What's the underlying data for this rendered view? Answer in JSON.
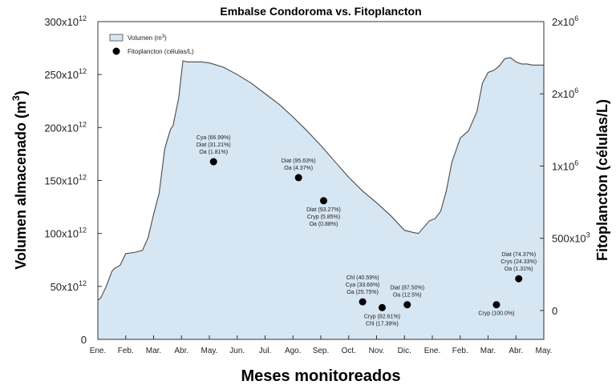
{
  "chart_data": {
    "type": "area",
    "title": "Embalse Condoroma vs. Fitoplancton",
    "xlabel": "Meses monitoreados",
    "ylabel_left": "Volumen almacenado (m",
    "ylabel_left_sup": "3",
    "ylabel_left_end": ")",
    "ylabel_right": "Fitoplancton (células/L)",
    "x_months": [
      "Ene.",
      "Feb.",
      "Mar.",
      "Abr.",
      "May.",
      "Jun.",
      "Jul.",
      "Ago.",
      "Sep.",
      "Oct.",
      "Nov.",
      "Dic.",
      "Ene.",
      "Feb.",
      "Mar.",
      "Abr.",
      "May."
    ],
    "ylim_left": [
      0,
      300
    ],
    "left_ticks": [
      {
        "v": 0,
        "base": "0",
        "exp": ""
      },
      {
        "v": 50,
        "base": "50x10",
        "exp": "12"
      },
      {
        "v": 100,
        "base": "100x10",
        "exp": "12"
      },
      {
        "v": 150,
        "base": "150x10",
        "exp": "12"
      },
      {
        "v": 200,
        "base": "200x10",
        "exp": "12"
      },
      {
        "v": 250,
        "base": "250x10",
        "exp": "12"
      },
      {
        "v": 300,
        "base": "300x10",
        "exp": "12"
      }
    ],
    "ylim_right": [
      -200000,
      2000000
    ],
    "right_ticks": [
      {
        "v": 0,
        "base": "0",
        "exp": ""
      },
      {
        "v": 500000,
        "base": "500x10",
        "exp": "3"
      },
      {
        "v": 1000000,
        "base": "1x10",
        "exp": "6"
      },
      {
        "v": 1500000,
        "base": "2x10",
        "exp": "6"
      },
      {
        "v": 2000000,
        "base": "2x10",
        "exp": "6"
      }
    ],
    "volume_series": {
      "name": "Volumen (m",
      "name_sup": "3",
      "name_end": ")",
      "units": "x10^12 m3",
      "x": [
        0,
        0.1,
        0.3,
        0.5,
        0.6,
        0.8,
        1.0,
        1.3,
        1.6,
        1.8,
        2.0,
        2.2,
        2.4,
        2.6,
        2.7,
        2.9,
        3.05,
        3.2,
        3.4,
        3.7,
        4.0,
        4.5,
        5.0,
        5.5,
        6.0,
        6.5,
        7.0,
        7.5,
        8.0,
        8.5,
        9.0,
        9.5,
        10.0,
        10.5,
        11.0,
        11.3,
        11.5,
        11.7,
        11.9,
        12.1,
        12.3,
        12.5,
        12.7,
        13.0,
        13.3,
        13.6,
        13.8,
        14.0,
        14.2,
        14.4,
        14.6,
        14.8,
        15.0,
        15.2,
        15.4,
        15.6,
        15.8,
        16.0
      ],
      "y": [
        37,
        39,
        50,
        64,
        67,
        70,
        81,
        82,
        84,
        96,
        118,
        138,
        180,
        198,
        202,
        228,
        263,
        262,
        262,
        262,
        261,
        257,
        250,
        242,
        232,
        222,
        210,
        197,
        183,
        168,
        153,
        140,
        129,
        117,
        103,
        101,
        100,
        106,
        112,
        114,
        121,
        140,
        167,
        190,
        197,
        215,
        242,
        252,
        254,
        258,
        265,
        266,
        262,
        260,
        260,
        259,
        259,
        259
      ]
    },
    "phyto_series": {
      "name": "Fitoplancton (células/L)",
      "points": [
        {
          "x": 4.15,
          "y": 1030000,
          "labels": [
            "Cya (66.99%)",
            "Diat (31.21%)",
            "Oa (1.81%)"
          ],
          "label_pos": "above"
        },
        {
          "x": 7.2,
          "y": 920000,
          "labels": [
            "Diat (95.63%)",
            "Oa (4.37%)"
          ],
          "label_pos": "above"
        },
        {
          "x": 8.1,
          "y": 760000,
          "labels": [
            "Diat (93.27%)",
            "Cryp (5.85%)",
            "Oa (0.88%)"
          ],
          "label_pos": "below"
        },
        {
          "x": 9.5,
          "y": 60000,
          "labels": [
            "Chl (40.59%)",
            "Cya (33.66%)",
            "Oa (25.75%)"
          ],
          "label_pos": "above"
        },
        {
          "x": 10.2,
          "y": 20000,
          "labels": [
            "Cryp (82.61%)",
            "Chl (17.39%)"
          ],
          "label_pos": "below"
        },
        {
          "x": 11.1,
          "y": 40000,
          "labels": [
            "Diat (87.50%)",
            "Oa (12.5%)"
          ],
          "label_pos": "above"
        },
        {
          "x": 14.3,
          "y": 40000,
          "labels": [
            "Cryp (100.0%)"
          ],
          "label_pos": "below"
        },
        {
          "x": 15.1,
          "y": 220000,
          "labels": [
            "Diat (74.37%)",
            "Crys (24.33%)",
            "Oa (1.31%)"
          ],
          "label_pos": "above"
        }
      ]
    },
    "grid": false,
    "legend": "top-left",
    "colors": {
      "area_fill": "#d6e6f2",
      "area_line": "#4a4a4a",
      "marker": "#000000"
    }
  }
}
